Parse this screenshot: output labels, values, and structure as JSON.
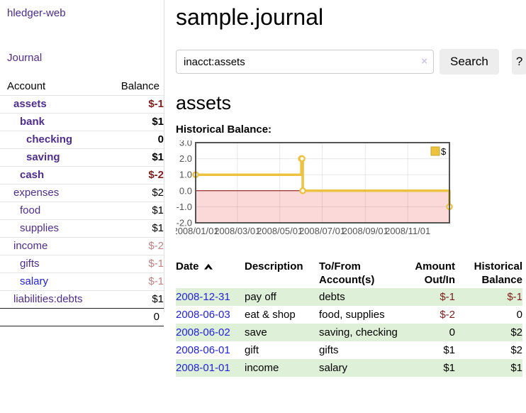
{
  "colors": {
    "link_purple": "#4f2d90",
    "link_blue": "#2222dd",
    "negative_dark_red": "#7f1c1c",
    "negative_soft_red": "#c28282",
    "row_green": "#dff0d8",
    "series_gold": "#edc240",
    "negative_region_pink": "#fbd9d9",
    "zero_line_red": "#8b0000",
    "axis_label_gray": "#545454"
  },
  "sidebar": {
    "brand": "hledger-web",
    "journal_link": "Journal",
    "accounts_table": {
      "col_account": "Account",
      "col_balance": "Balance",
      "rows": [
        {
          "name": "assets",
          "indent": 1,
          "bold": true,
          "balance": "$-1",
          "balance_class": "neg-strong"
        },
        {
          "name": "bank",
          "indent": 2,
          "bold": true,
          "balance": "$1",
          "balance_class": ""
        },
        {
          "name": "checking",
          "indent": 3,
          "bold": true,
          "balance": "0",
          "balance_class": ""
        },
        {
          "name": "saving",
          "indent": 3,
          "bold": true,
          "balance": "$1",
          "balance_class": ""
        },
        {
          "name": "cash",
          "indent": 2,
          "bold": true,
          "balance": "$-2",
          "balance_class": "neg-strong"
        },
        {
          "name": "expenses",
          "indent": 1,
          "bold": false,
          "balance": "$2",
          "balance_class": ""
        },
        {
          "name": "food",
          "indent": 2,
          "bold": false,
          "balance": "$1",
          "balance_class": ""
        },
        {
          "name": "supplies",
          "indent": 2,
          "bold": false,
          "balance": "$1",
          "balance_class": ""
        },
        {
          "name": "income",
          "indent": 1,
          "bold": false,
          "balance": "$-2",
          "balance_class": "neg-soft"
        },
        {
          "name": "gifts",
          "indent": 2,
          "bold": false,
          "balance": "$-1",
          "balance_class": "neg-soft"
        },
        {
          "name": "salary",
          "indent": 2,
          "bold": false,
          "link_color": "blue",
          "balance": "$-1",
          "balance_class": "neg-soft"
        },
        {
          "name": "liabilities:debts",
          "indent": 1,
          "bold": false,
          "balance": "$1",
          "balance_class": ""
        }
      ],
      "total": "0"
    }
  },
  "header": {
    "title": "sample.journal"
  },
  "search": {
    "value": "inacct:assets",
    "clear_icon": "×",
    "button_label": "Search",
    "help_label": "?"
  },
  "account_page": {
    "heading": "assets",
    "chart_label": "Historical Balance:"
  },
  "chart_data": {
    "type": "line",
    "step": true,
    "title": "Historical Balance",
    "series": [
      {
        "name": "$",
        "color": "#edc240",
        "points": [
          {
            "x": "2008-01-01",
            "y": 1
          },
          {
            "x": "2008-06-01",
            "y": 2
          },
          {
            "x": "2008-06-02",
            "y": 2
          },
          {
            "x": "2008-06-03",
            "y": 0
          },
          {
            "x": "2008-12-31",
            "y": -1
          }
        ]
      }
    ],
    "x_range": [
      "2008-01-01",
      "2008-12-31"
    ],
    "x_ticks": [
      {
        "x": "2008-01-01",
        "label": "2008/01/01"
      },
      {
        "x": "2008-03-01",
        "label": "2008/03/01"
      },
      {
        "x": "2008-05-01",
        "label": "2008/05/01"
      },
      {
        "x": "2008-07-01",
        "label": "2008/07/01"
      },
      {
        "x": "2008-09-01",
        "label": "2008/09/01"
      },
      {
        "x": "2008-11-01",
        "label": "2008/11/01"
      }
    ],
    "y_ticks": [
      {
        "v": 3,
        "label": "3.0"
      },
      {
        "v": 2,
        "label": "2.0"
      },
      {
        "v": 1,
        "label": "1.0"
      },
      {
        "v": 0,
        "label": "0.0"
      },
      {
        "v": -1,
        "label": "-1.0"
      },
      {
        "v": -2,
        "label": "-2.0"
      }
    ],
    "ylim": [
      -2,
      3
    ],
    "grid": true,
    "legend_label": "$",
    "legend_position": "top-right",
    "negative_region_fill": "#fbd9d9",
    "zero_line_color": "#8b0000",
    "border_color": "#545454"
  },
  "register_table": {
    "columns": [
      "Date",
      "Description",
      "To/From Account(s)",
      "Amount Out/In",
      "Historical Balance"
    ],
    "sort_icon": "sort-ascending",
    "rows": [
      {
        "date": "2008-12-31",
        "description": "pay off",
        "accounts": "debts",
        "amount": "$-1",
        "amount_neg": true,
        "balance": "$-1",
        "balance_neg": true,
        "shaded": true
      },
      {
        "date": "2008-06-03",
        "description": "eat & shop",
        "accounts": "food, supplies",
        "amount": "$-2",
        "amount_neg": true,
        "balance": "0",
        "balance_neg": false,
        "shaded": false
      },
      {
        "date": "2008-06-02",
        "description": "save",
        "accounts": "saving, checking",
        "amount": "0",
        "amount_neg": false,
        "balance": "$2",
        "balance_neg": false,
        "shaded": true
      },
      {
        "date": "2008-06-01",
        "description": "gift",
        "accounts": "gifts",
        "amount": "$1",
        "amount_neg": false,
        "balance": "$2",
        "balance_neg": false,
        "shaded": false
      },
      {
        "date": "2008-01-01",
        "description": "income",
        "accounts": "salary",
        "amount": "$1",
        "amount_neg": false,
        "balance": "$1",
        "balance_neg": false,
        "shaded": true
      }
    ]
  }
}
